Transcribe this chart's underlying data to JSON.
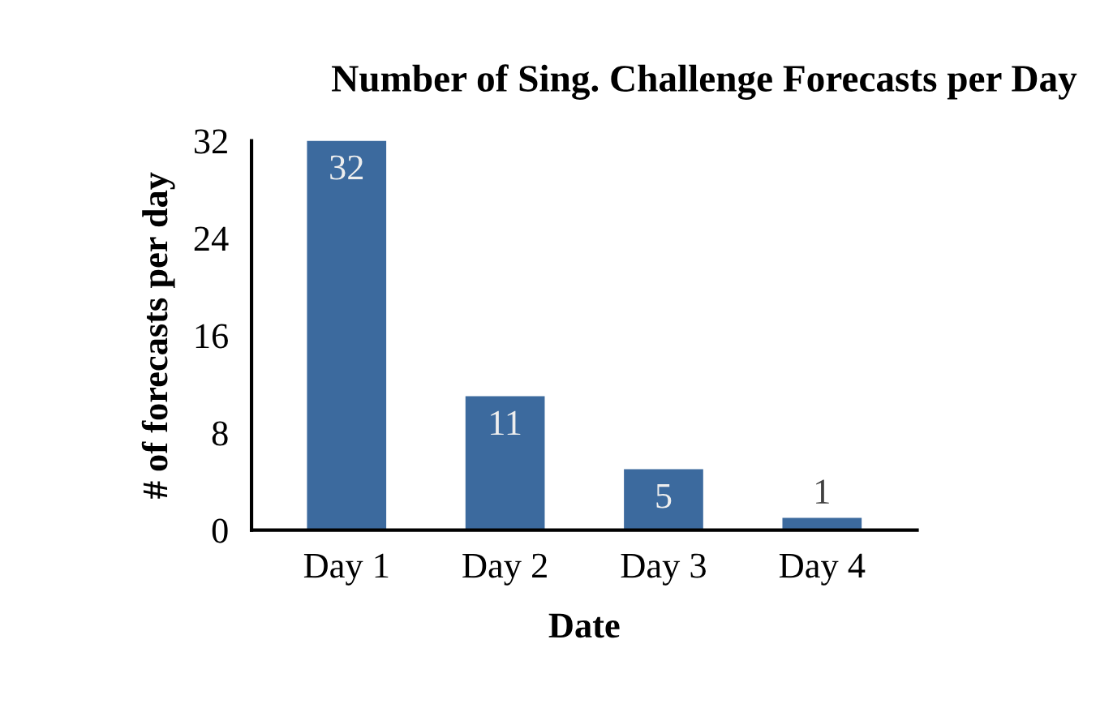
{
  "chart_data": {
    "type": "bar",
    "title": "Number of Sing. Challenge Forecasts per Day",
    "xlabel": "Date",
    "ylabel": "# of forecasts per day",
    "categories": [
      "Day 1",
      "Day 2",
      "Day 3",
      "Day 4"
    ],
    "values": [
      32,
      11,
      5,
      1
    ],
    "color": "#3c6a9e",
    "ylim": [
      0,
      32
    ],
    "yticks": [
      0,
      8,
      16,
      24,
      32
    ],
    "grid": false,
    "data_labels": true
  }
}
